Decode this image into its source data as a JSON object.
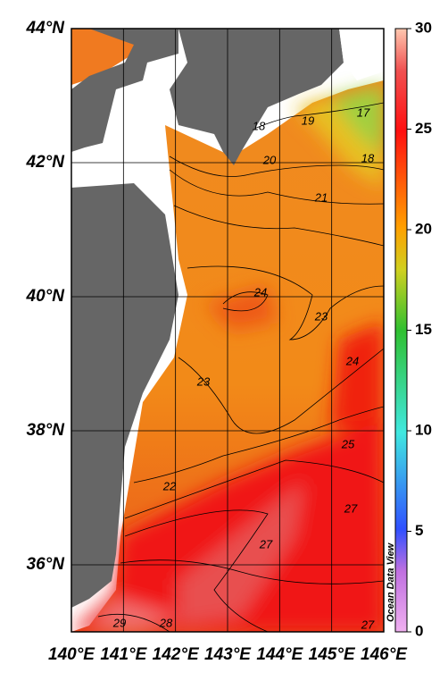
{
  "map": {
    "xlim": [
      140,
      146
    ],
    "ylim": [
      35,
      44
    ],
    "xticks": [
      {
        "value": 140,
        "label": "140°E"
      },
      {
        "value": 141,
        "label": "141°E"
      },
      {
        "value": 142,
        "label": "142°E"
      },
      {
        "value": 143,
        "label": "143°E"
      },
      {
        "value": 144,
        "label": "144°E"
      },
      {
        "value": 145,
        "label": "145°E"
      },
      {
        "value": 146,
        "label": "146°E"
      }
    ],
    "yticks": [
      {
        "value": 36,
        "label": "36°N"
      },
      {
        "value": 38,
        "label": "38°N"
      },
      {
        "value": 40,
        "label": "40°N"
      },
      {
        "value": 42,
        "label": "42°N"
      },
      {
        "value": 44,
        "label": "44°N"
      }
    ],
    "colorbar": {
      "lim": [
        0,
        30
      ],
      "ticks": [
        0,
        5,
        10,
        15,
        20,
        25,
        30
      ]
    },
    "watermark": "Ocean Data View",
    "contour_labels": [
      17,
      18,
      19,
      18,
      20,
      21,
      24,
      23,
      24,
      23,
      25,
      22,
      27,
      27,
      29,
      28,
      27
    ]
  }
}
